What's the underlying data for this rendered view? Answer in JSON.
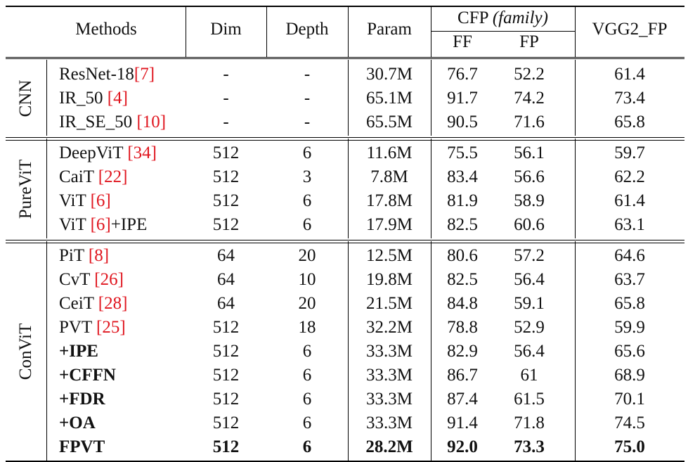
{
  "header": {
    "methods": "Methods",
    "dim": "Dim",
    "depth": "Depth",
    "param": "Param",
    "cfp_prefix": "CFP",
    "cfp_family": "(family)",
    "ff": "FF",
    "fp": "FP",
    "vgg2": "VGG2_FP"
  },
  "groups": [
    {
      "label": "CNN",
      "rows": [
        {
          "name": "ResNet-18",
          "cite": "[7]",
          "suffix": "",
          "dim": "-",
          "depth": "-",
          "param": "30.7M",
          "ff": "76.7",
          "fp": "52.2",
          "vgg2": "61.4"
        },
        {
          "name": "IR_50 ",
          "cite": "[4]",
          "suffix": "",
          "dim": "-",
          "depth": "-",
          "param": "65.1M",
          "ff": "91.7",
          "fp": "74.2",
          "vgg2": "73.4"
        },
        {
          "name": "IR_SE_50 ",
          "cite": "[10]",
          "suffix": "",
          "dim": "-",
          "depth": "-",
          "param": "65.5M",
          "ff": "90.5",
          "fp": "71.6",
          "vgg2": "65.8"
        }
      ]
    },
    {
      "label": "PureViT",
      "rows": [
        {
          "name": "DeepViT ",
          "cite": "[34]",
          "suffix": "",
          "dim": "512",
          "depth": "6",
          "param": "11.6M",
          "ff": "75.5",
          "fp": "56.1",
          "vgg2": "59.7"
        },
        {
          "name": "CaiT ",
          "cite": "[22]",
          "suffix": "",
          "dim": "512",
          "depth": "3",
          "param": "7.8M",
          "ff": "83.4",
          "fp": "56.6",
          "vgg2": "62.2"
        },
        {
          "name": "ViT ",
          "cite": "[6]",
          "suffix": "",
          "dim": "512",
          "depth": "6",
          "param": "17.8M",
          "ff": "81.9",
          "fp": "58.9",
          "vgg2": "61.4"
        },
        {
          "name": "ViT ",
          "cite": "[6]",
          "suffix": "+IPE",
          "dim": "512",
          "depth": "6",
          "param": "17.9M",
          "ff": "82.5",
          "fp": "60.6",
          "vgg2": "63.1"
        }
      ]
    },
    {
      "label": "ConViT",
      "rows": [
        {
          "name": "PiT ",
          "cite": "[8]",
          "suffix": "",
          "dim": "64",
          "depth": "20",
          "param": "12.5M",
          "ff": "80.6",
          "fp": "57.2",
          "vgg2": "64.6"
        },
        {
          "name": "CvT ",
          "cite": "[26]",
          "suffix": "",
          "dim": "64",
          "depth": "10",
          "param": "19.8M",
          "ff": "82.5",
          "fp": "56.4",
          "vgg2": "63.7"
        },
        {
          "name": "CeiT ",
          "cite": "[28]",
          "suffix": "",
          "dim": "64",
          "depth": "20",
          "param": "21.5M",
          "ff": "84.8",
          "fp": "59.1",
          "vgg2": "65.8"
        },
        {
          "name": "PVT ",
          "cite": "[25]",
          "suffix": "",
          "dim": "512",
          "depth": "18",
          "param": "32.2M",
          "ff": "78.8",
          "fp": "52.9",
          "vgg2": "59.9"
        },
        {
          "name": "+IPE",
          "cite": "",
          "suffix": "",
          "dim": "512",
          "depth": "6",
          "param": "33.3M",
          "ff": "82.9",
          "fp": "56.4",
          "vgg2": "65.6",
          "bold_name": true
        },
        {
          "name": "+CFFN",
          "cite": "",
          "suffix": "",
          "dim": "512",
          "depth": "6",
          "param": "33.3M",
          "ff": "86.7",
          "fp": "61",
          "vgg2": "68.9",
          "bold_name": true
        },
        {
          "name": "+FDR",
          "cite": "",
          "suffix": "",
          "dim": "512",
          "depth": "6",
          "param": "33.3M",
          "ff": "87.4",
          "fp": "61.5",
          "vgg2": "70.1",
          "bold_name": true
        },
        {
          "name": "+OA",
          "cite": "",
          "suffix": "",
          "dim": "512",
          "depth": "6",
          "param": "33.3M",
          "ff": "91.4",
          "fp": "71.8",
          "vgg2": "74.5",
          "bold_name": true
        },
        {
          "name": "FPVT",
          "cite": "",
          "suffix": "",
          "dim": "512",
          "depth": "6",
          "param": "28.2M",
          "ff": "92.0",
          "fp": "73.3",
          "vgg2": "75.0",
          "bold_name": true,
          "bold_all": true
        }
      ]
    }
  ]
}
